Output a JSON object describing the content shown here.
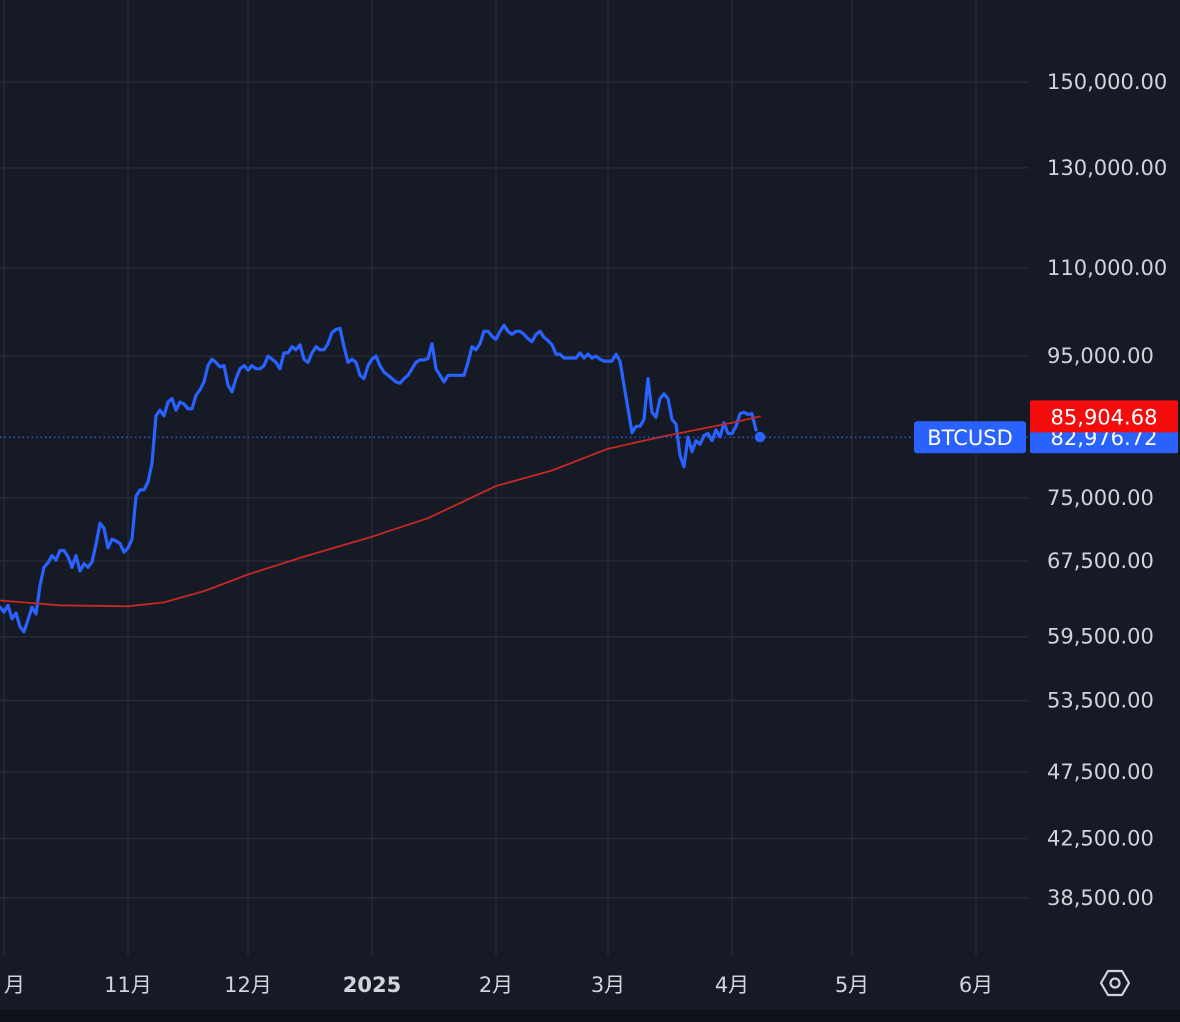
{
  "chart_data": {
    "type": "line",
    "symbol": "BTCUSD",
    "y_scale": "log",
    "ylim": [
      35000,
      172000
    ],
    "grid": true,
    "y_ticks": [
      "150,000.00",
      "130,000.00",
      "110,000.00",
      "95,000.00",
      "75,000.00",
      "67,500.00",
      "59,500.00",
      "53,500.00",
      "47,500.00",
      "42,500.00",
      "38,500.00"
    ],
    "y_tick_values": [
      150000,
      130000,
      110000,
      95000,
      75000,
      67500,
      59500,
      53500,
      47500,
      42500,
      38500
    ],
    "x_ticks": [
      "月",
      "11月",
      "12月",
      "2025",
      "2月",
      "3月",
      "4月",
      "5月",
      "6月"
    ],
    "x_tick_dates": [
      "2024-10-01",
      "2024-11-01",
      "2024-12-01",
      "2025-01-01",
      "2025-02-01",
      "2025-03-01",
      "2025-04-01",
      "2025-05-01",
      "2025-06-01"
    ],
    "x_range": [
      "2024-09-30",
      "2025-06-14"
    ],
    "current_price_label": "82,976.72",
    "current_price": 82976.72,
    "ma_price_label": "85,904.68",
    "ma_price": 85904.68,
    "series": [
      {
        "color": "#2962ff",
        "points": [
          [
            "2024-09-30",
            62500
          ],
          [
            "2024-10-01",
            62000
          ],
          [
            "2024-10-02",
            62700
          ],
          [
            "2024-10-03",
            61300
          ],
          [
            "2024-10-04",
            61900
          ],
          [
            "2024-10-05",
            60500
          ],
          [
            "2024-10-06",
            60000
          ],
          [
            "2024-10-07",
            61200
          ],
          [
            "2024-10-08",
            62500
          ],
          [
            "2024-10-09",
            61800
          ],
          [
            "2024-10-10",
            64800
          ],
          [
            "2024-10-11",
            66800
          ],
          [
            "2024-10-12",
            67300
          ],
          [
            "2024-10-13",
            68100
          ],
          [
            "2024-10-14",
            67600
          ],
          [
            "2024-10-15",
            68700
          ],
          [
            "2024-10-16",
            68700
          ],
          [
            "2024-10-17",
            68000
          ],
          [
            "2024-10-18",
            66800
          ],
          [
            "2024-10-19",
            68100
          ],
          [
            "2024-10-20",
            66400
          ],
          [
            "2024-10-21",
            67200
          ],
          [
            "2024-10-22",
            66800
          ],
          [
            "2024-10-23",
            67400
          ],
          [
            "2024-10-24",
            69400
          ],
          [
            "2024-10-25",
            71900
          ],
          [
            "2024-10-26",
            71300
          ],
          [
            "2024-10-27",
            69000
          ],
          [
            "2024-10-28",
            70000
          ],
          [
            "2024-10-29",
            69800
          ],
          [
            "2024-10-30",
            69500
          ],
          [
            "2024-10-31",
            68500
          ],
          [
            "2024-11-01",
            69000
          ],
          [
            "2024-11-02",
            70000
          ],
          [
            "2024-11-03",
            75200
          ],
          [
            "2024-11-04",
            76000
          ],
          [
            "2024-11-05",
            76000
          ],
          [
            "2024-11-06",
            77000
          ],
          [
            "2024-11-07",
            79500
          ],
          [
            "2024-11-08",
            86000
          ],
          [
            "2024-11-09",
            86800
          ],
          [
            "2024-11-10",
            86000
          ],
          [
            "2024-11-11",
            88000
          ],
          [
            "2024-11-12",
            88500
          ],
          [
            "2024-11-13",
            86800
          ],
          [
            "2024-11-14",
            88000
          ],
          [
            "2024-11-15",
            87700
          ],
          [
            "2024-11-16",
            87000
          ],
          [
            "2024-11-17",
            87000
          ],
          [
            "2024-11-18",
            89000
          ],
          [
            "2024-11-19",
            89800
          ],
          [
            "2024-11-20",
            91000
          ],
          [
            "2024-11-21",
            93500
          ],
          [
            "2024-11-22",
            94500
          ],
          [
            "2024-11-23",
            94000
          ],
          [
            "2024-11-24",
            93300
          ],
          [
            "2024-11-25",
            93500
          ],
          [
            "2024-11-26",
            90500
          ],
          [
            "2024-11-27",
            89500
          ],
          [
            "2024-11-28",
            91500
          ],
          [
            "2024-11-29",
            93000
          ],
          [
            "2024-11-30",
            93500
          ],
          [
            "2024-12-01",
            92800
          ],
          [
            "2024-12-02",
            93500
          ],
          [
            "2024-12-03",
            93000
          ],
          [
            "2024-12-04",
            93000
          ],
          [
            "2024-12-05",
            93500
          ],
          [
            "2024-12-06",
            95000
          ],
          [
            "2024-12-07",
            94500
          ],
          [
            "2024-12-08",
            94000
          ],
          [
            "2024-12-09",
            93000
          ],
          [
            "2024-12-10",
            95500
          ],
          [
            "2024-12-11",
            95500
          ],
          [
            "2024-12-12",
            96500
          ],
          [
            "2024-12-13",
            96000
          ],
          [
            "2024-12-14",
            96800
          ],
          [
            "2024-12-15",
            94500
          ],
          [
            "2024-12-16",
            94000
          ],
          [
            "2024-12-17",
            95500
          ],
          [
            "2024-12-18",
            96500
          ],
          [
            "2024-12-19",
            96000
          ],
          [
            "2024-12-20",
            96000
          ],
          [
            "2024-12-21",
            97000
          ],
          [
            "2024-12-22",
            98800
          ],
          [
            "2024-12-23",
            99300
          ],
          [
            "2024-12-24",
            99500
          ],
          [
            "2024-12-25",
            96500
          ],
          [
            "2024-12-26",
            94000
          ],
          [
            "2024-12-27",
            94500
          ],
          [
            "2024-12-28",
            94000
          ],
          [
            "2024-12-29",
            92000
          ],
          [
            "2024-12-30",
            91500
          ],
          [
            "2024-12-31",
            93500
          ],
          [
            "2025-01-01",
            94500
          ],
          [
            "2025-01-02",
            95000
          ],
          [
            "2025-01-03",
            93500
          ],
          [
            "2025-01-04",
            92500
          ],
          [
            "2025-01-05",
            92000
          ],
          [
            "2025-01-06",
            91500
          ],
          [
            "2025-01-07",
            91000
          ],
          [
            "2025-01-08",
            90800
          ],
          [
            "2025-01-09",
            91500
          ],
          [
            "2025-01-10",
            92000
          ],
          [
            "2025-01-11",
            93000
          ],
          [
            "2025-01-12",
            94000
          ],
          [
            "2025-01-13",
            94400
          ],
          [
            "2025-01-14",
            94400
          ],
          [
            "2025-01-15",
            94600
          ],
          [
            "2025-01-16",
            97000
          ],
          [
            "2025-01-17",
            93000
          ],
          [
            "2025-01-18",
            92000
          ],
          [
            "2025-01-19",
            91000
          ],
          [
            "2025-01-20",
            92000
          ],
          [
            "2025-01-21",
            92000
          ],
          [
            "2025-01-22",
            92000
          ],
          [
            "2025-01-23",
            92000
          ],
          [
            "2025-01-24",
            92000
          ],
          [
            "2025-01-25",
            94000
          ],
          [
            "2025-01-26",
            96500
          ],
          [
            "2025-01-27",
            96000
          ],
          [
            "2025-01-28",
            97000
          ],
          [
            "2025-01-29",
            99000
          ],
          [
            "2025-01-30",
            99000
          ],
          [
            "2025-01-31",
            98200
          ],
          [
            "2025-02-01",
            97700
          ],
          [
            "2025-02-02",
            99000
          ],
          [
            "2025-02-03",
            100000
          ],
          [
            "2025-02-04",
            99000
          ],
          [
            "2025-02-05",
            98500
          ],
          [
            "2025-02-06",
            99000
          ],
          [
            "2025-02-07",
            99000
          ],
          [
            "2025-02-08",
            98500
          ],
          [
            "2025-02-09",
            97800
          ],
          [
            "2025-02-10",
            97300
          ],
          [
            "2025-02-11",
            98500
          ],
          [
            "2025-02-12",
            99000
          ],
          [
            "2025-02-13",
            98000
          ],
          [
            "2025-02-14",
            97500
          ],
          [
            "2025-02-15",
            96800
          ],
          [
            "2025-02-16",
            95300
          ],
          [
            "2025-02-17",
            95300
          ],
          [
            "2025-02-18",
            94700
          ],
          [
            "2025-02-19",
            94700
          ],
          [
            "2025-02-20",
            94700
          ],
          [
            "2025-02-21",
            94700
          ],
          [
            "2025-02-22",
            95500
          ],
          [
            "2025-02-23",
            94700
          ],
          [
            "2025-02-24",
            95300
          ],
          [
            "2025-02-25",
            94700
          ],
          [
            "2025-02-26",
            95000
          ],
          [
            "2025-02-27",
            94500
          ],
          [
            "2025-02-28",
            94200
          ],
          [
            "2025-03-01",
            94200
          ],
          [
            "2025-03-02",
            94200
          ],
          [
            "2025-03-03",
            95300
          ],
          [
            "2025-03-04",
            94200
          ],
          [
            "2025-03-05",
            90500
          ],
          [
            "2025-03-06",
            87000
          ],
          [
            "2025-03-07",
            83600
          ],
          [
            "2025-03-08",
            84500
          ],
          [
            "2025-03-09",
            84500
          ],
          [
            "2025-03-10",
            85500
          ],
          [
            "2025-03-11",
            91500
          ],
          [
            "2025-03-12",
            86500
          ],
          [
            "2025-03-13",
            85800
          ],
          [
            "2025-03-14",
            88500
          ],
          [
            "2025-03-15",
            89200
          ],
          [
            "2025-03-16",
            88500
          ],
          [
            "2025-03-17",
            85500
          ],
          [
            "2025-03-18",
            84800
          ],
          [
            "2025-03-19",
            80500
          ],
          [
            "2025-03-20",
            79000
          ],
          [
            "2025-03-21",
            83000
          ],
          [
            "2025-03-22",
            81000
          ],
          [
            "2025-03-23",
            82500
          ],
          [
            "2025-03-24",
            82000
          ],
          [
            "2025-03-25",
            83200
          ],
          [
            "2025-03-26",
            83500
          ],
          [
            "2025-03-27",
            82500
          ],
          [
            "2025-03-28",
            84000
          ],
          [
            "2025-03-29",
            83000
          ],
          [
            "2025-03-30",
            85000
          ],
          [
            "2025-03-31",
            83500
          ],
          [
            "2025-04-01",
            83500
          ],
          [
            "2025-04-02",
            84500
          ],
          [
            "2025-04-03",
            86300
          ],
          [
            "2025-04-04",
            86500
          ],
          [
            "2025-04-05",
            86200
          ],
          [
            "2025-04-06",
            86300
          ],
          [
            "2025-04-07",
            84000
          ],
          [
            "2025-04-08",
            83000
          ]
        ]
      },
      {
        "color": "#c62828",
        "points": [
          [
            "2024-09-30",
            63200
          ],
          [
            "2024-10-15",
            62700
          ],
          [
            "2024-11-01",
            62600
          ],
          [
            "2024-11-10",
            63000
          ],
          [
            "2024-11-20",
            64200
          ],
          [
            "2024-12-01",
            66000
          ],
          [
            "2024-12-15",
            68000
          ],
          [
            "2025-01-01",
            70300
          ],
          [
            "2025-01-15",
            72500
          ],
          [
            "2025-02-01",
            76500
          ],
          [
            "2025-02-15",
            78500
          ],
          [
            "2025-03-01",
            81400
          ],
          [
            "2025-03-15",
            83100
          ],
          [
            "2025-04-01",
            85000
          ],
          [
            "2025-04-08",
            85900
          ]
        ]
      }
    ]
  }
}
